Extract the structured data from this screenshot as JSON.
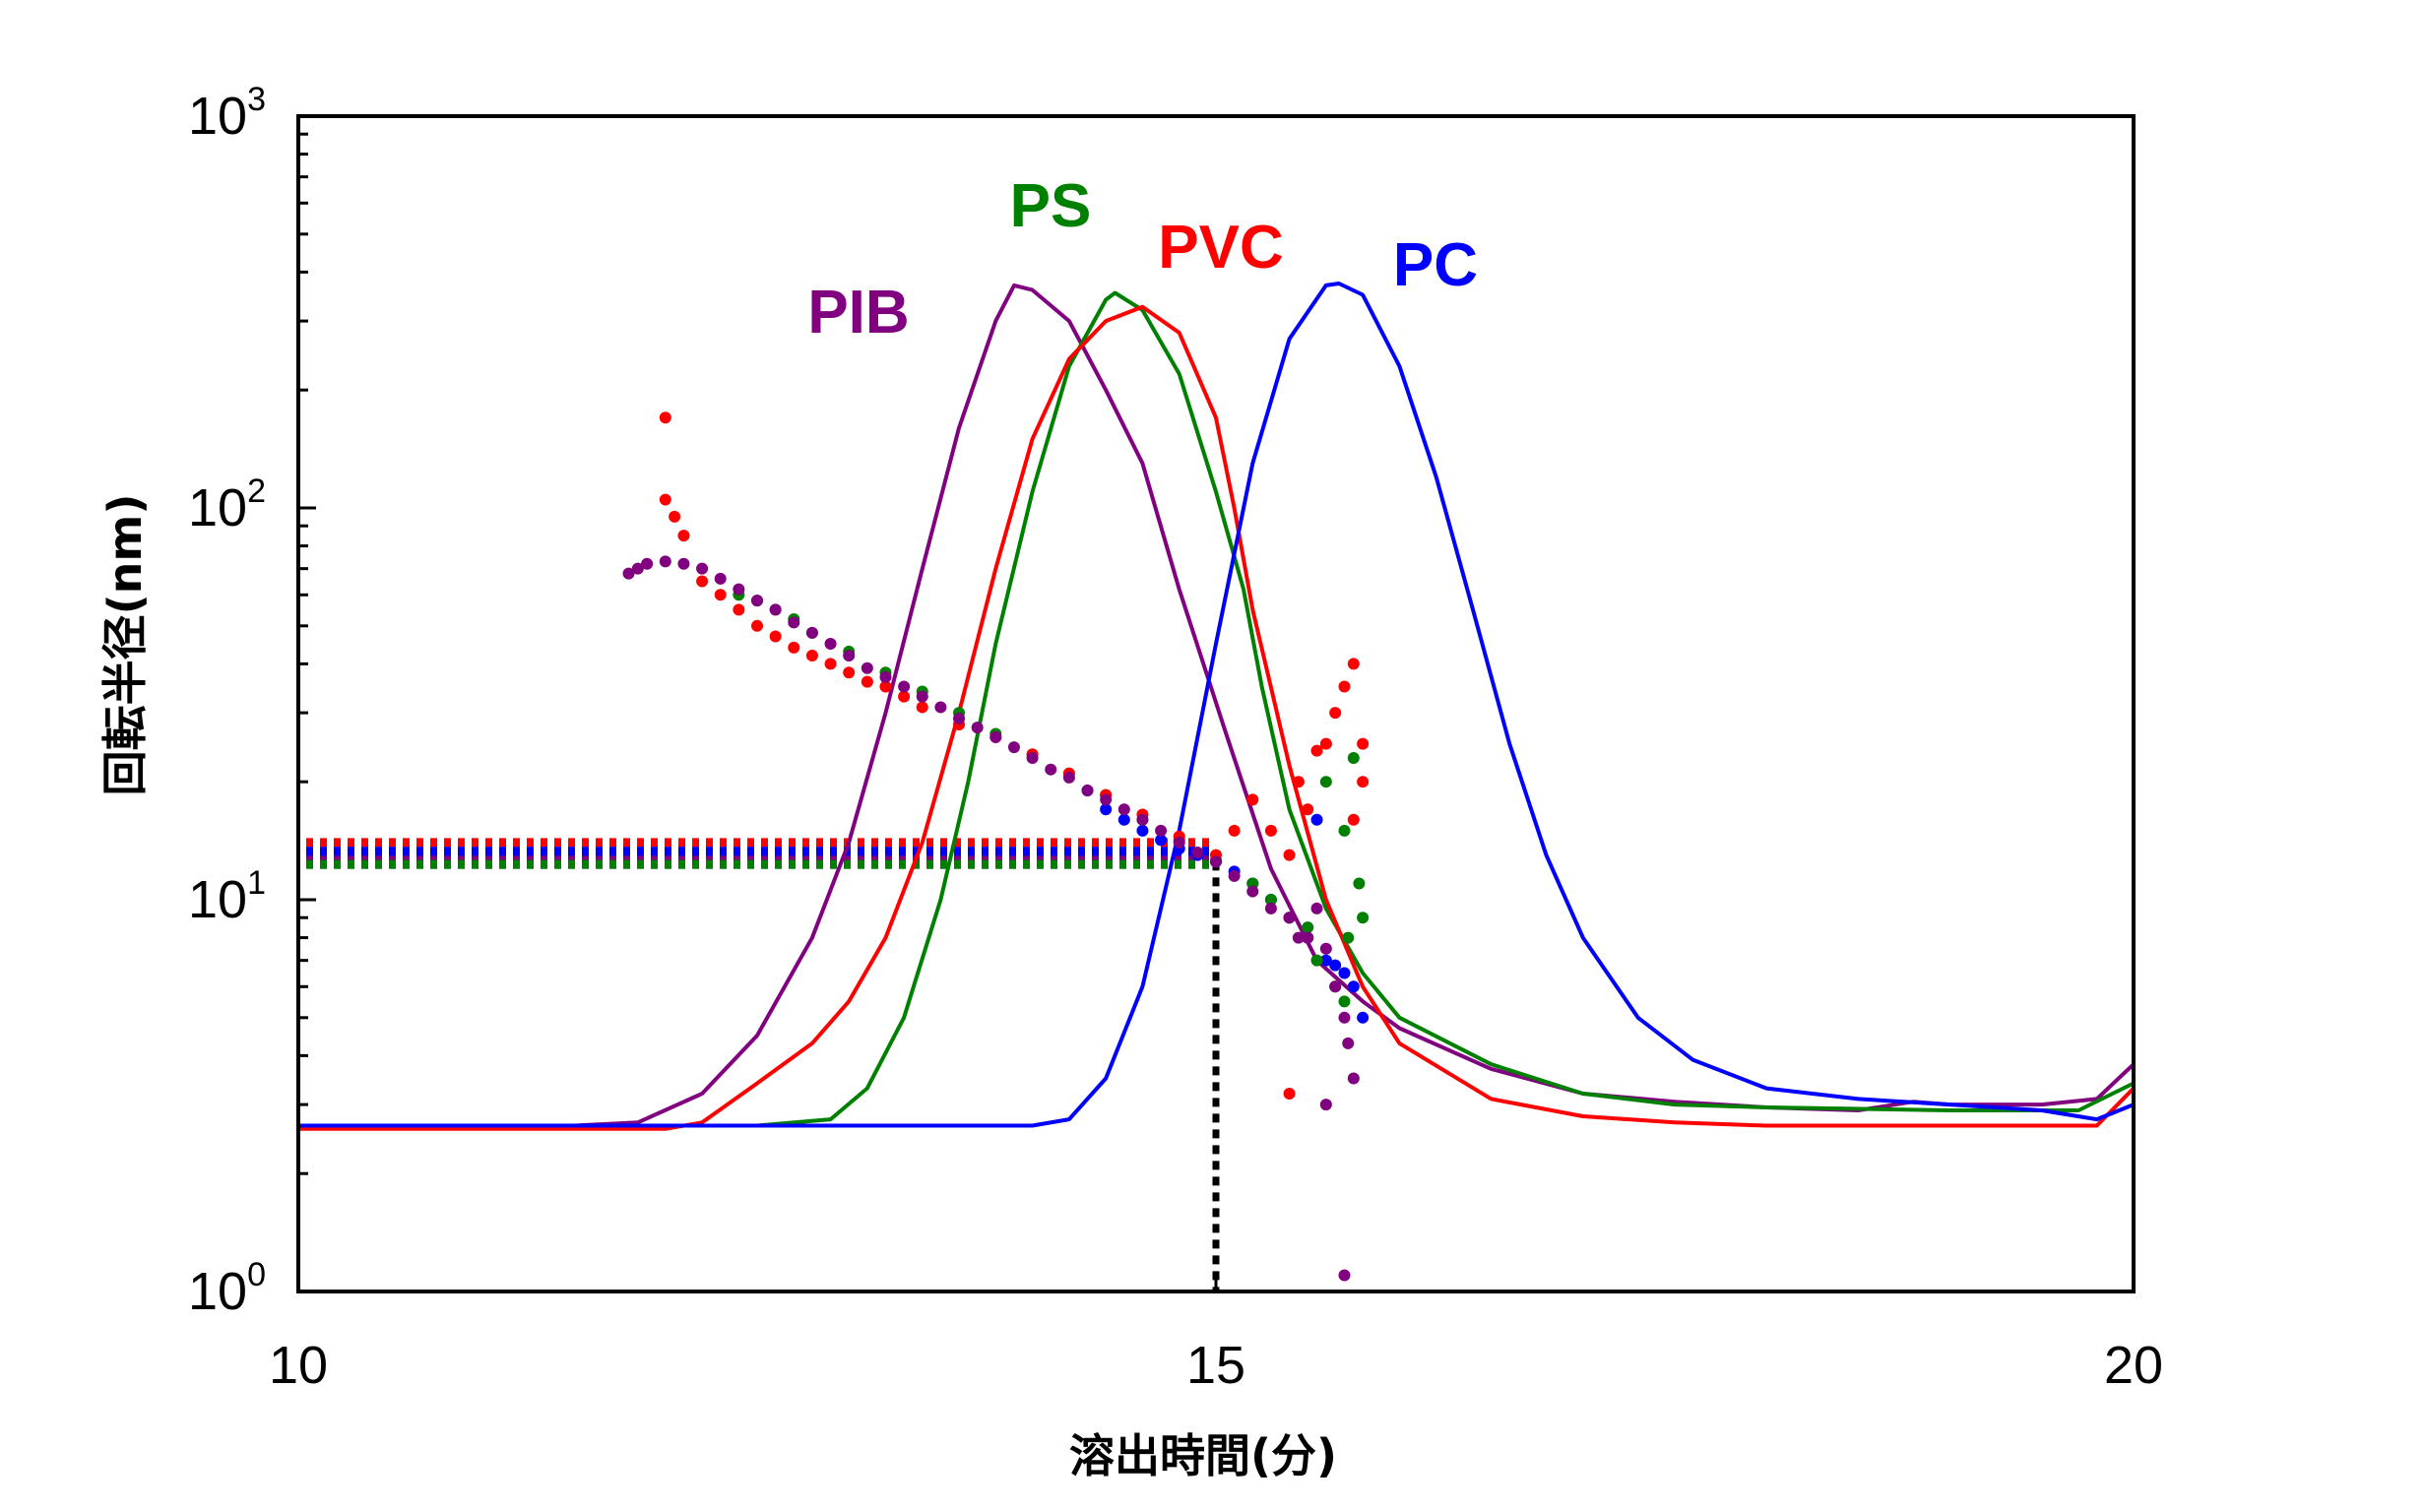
{
  "chart_data": {
    "type": "line",
    "xlabel": "溶出時間(分)",
    "ylabel": "回転半径(nm)",
    "xlim": [
      10,
      20
    ],
    "ylim": [
      1,
      1000
    ],
    "yscale": "log",
    "grid": false,
    "legend": "inline labels near peaks",
    "x_ticks": [
      "10",
      "15",
      "20"
    ],
    "y_ticks": [
      {
        "base": "10",
        "exp": "0"
      },
      {
        "base": "10",
        "exp": "1"
      },
      {
        "base": "10",
        "exp": "2"
      },
      {
        "base": "10",
        "exp": "3"
      }
    ],
    "series": [
      {
        "name": "PIB",
        "color": "#800080",
        "curve": [
          [
            10,
            2.65
          ],
          [
            11.5,
            2.65
          ],
          [
            11.85,
            2.7
          ],
          [
            12.2,
            3.2
          ],
          [
            12.5,
            4.5
          ],
          [
            12.8,
            8
          ],
          [
            13.0,
            14
          ],
          [
            13.2,
            30
          ],
          [
            13.4,
            70
          ],
          [
            13.6,
            160
          ],
          [
            13.8,
            300
          ],
          [
            13.9,
            370
          ],
          [
            14.0,
            360
          ],
          [
            14.2,
            300
          ],
          [
            14.4,
            200
          ],
          [
            14.6,
            130
          ],
          [
            14.8,
            62
          ],
          [
            15.05,
            27
          ],
          [
            15.3,
            12
          ],
          [
            15.55,
            7
          ],
          [
            15.8,
            5.5
          ],
          [
            16.0,
            4.7
          ],
          [
            16.5,
            3.7
          ],
          [
            17.0,
            3.2
          ],
          [
            17.5,
            3.05
          ],
          [
            18.0,
            2.95
          ],
          [
            18.5,
            2.9
          ],
          [
            18.8,
            3.05
          ],
          [
            19.0,
            3.0
          ],
          [
            19.5,
            3.0
          ],
          [
            19.8,
            3.1
          ],
          [
            20.0,
            3.8
          ]
        ],
        "rg_points": [
          [
            11.8,
            68
          ],
          [
            11.85,
            70
          ],
          [
            11.9,
            72
          ],
          [
            12.0,
            73
          ],
          [
            12.1,
            72
          ],
          [
            12.2,
            70
          ],
          [
            12.3,
            66
          ],
          [
            12.4,
            62
          ],
          [
            12.5,
            58
          ],
          [
            12.6,
            55
          ],
          [
            12.7,
            51
          ],
          [
            12.8,
            48
          ],
          [
            12.9,
            45
          ],
          [
            13.0,
            42
          ],
          [
            13.1,
            39
          ],
          [
            13.2,
            37
          ],
          [
            13.3,
            35
          ],
          [
            13.4,
            33
          ],
          [
            13.5,
            31
          ],
          [
            13.6,
            29
          ],
          [
            13.7,
            27.5
          ],
          [
            13.8,
            26
          ],
          [
            13.9,
            24.5
          ],
          [
            14.0,
            23
          ],
          [
            14.1,
            21.5
          ],
          [
            14.2,
            20.5
          ],
          [
            14.3,
            19
          ],
          [
            14.4,
            18
          ],
          [
            14.5,
            17
          ],
          [
            14.6,
            16
          ],
          [
            14.7,
            15
          ],
          [
            14.8,
            14
          ],
          [
            14.9,
            13.2
          ],
          [
            15.0,
            12.5
          ],
          [
            15.1,
            11.5
          ],
          [
            15.2,
            10.5
          ],
          [
            15.3,
            9.5
          ],
          [
            15.4,
            9
          ],
          [
            15.45,
            8
          ],
          [
            15.5,
            8
          ],
          [
            15.55,
            9.5
          ],
          [
            15.6,
            7.5
          ],
          [
            15.65,
            6
          ],
          [
            15.7,
            5
          ],
          [
            15.72,
            4.3
          ],
          [
            15.75,
            3.5
          ],
          [
            15.6,
            3.0
          ],
          [
            15.7,
            1.1
          ]
        ],
        "reference_rg": 12.8
      },
      {
        "name": "PS",
        "color": "#008000",
        "curve": [
          [
            10,
            2.65
          ],
          [
            12.5,
            2.65
          ],
          [
            12.9,
            2.75
          ],
          [
            13.1,
            3.3
          ],
          [
            13.3,
            5
          ],
          [
            13.5,
            10
          ],
          [
            13.65,
            20
          ],
          [
            13.8,
            45
          ],
          [
            14.0,
            110
          ],
          [
            14.2,
            230
          ],
          [
            14.4,
            340
          ],
          [
            14.45,
            354
          ],
          [
            14.6,
            320
          ],
          [
            14.8,
            220
          ],
          [
            15.0,
            110
          ],
          [
            15.15,
            62
          ],
          [
            15.25,
            35
          ],
          [
            15.4,
            17
          ],
          [
            15.6,
            9.5
          ],
          [
            15.8,
            6.5
          ],
          [
            16.0,
            5.0
          ],
          [
            16.5,
            3.8
          ],
          [
            17.0,
            3.2
          ],
          [
            17.5,
            3.0
          ],
          [
            18.0,
            2.95
          ],
          [
            19.0,
            2.9
          ],
          [
            19.7,
            2.9
          ],
          [
            20.0,
            3.4
          ]
        ],
        "rg_points": [
          [
            12.4,
            60
          ],
          [
            12.5,
            58
          ],
          [
            12.6,
            55
          ],
          [
            12.7,
            52
          ],
          [
            12.8,
            48
          ],
          [
            13.0,
            43
          ],
          [
            13.2,
            38
          ],
          [
            13.4,
            34
          ],
          [
            13.6,
            30
          ],
          [
            13.8,
            26.5
          ],
          [
            14.0,
            23.5
          ],
          [
            14.2,
            21
          ],
          [
            14.4,
            18.5
          ],
          [
            14.6,
            16
          ],
          [
            14.8,
            14.2
          ],
          [
            15.0,
            12.6
          ],
          [
            15.2,
            11
          ],
          [
            15.3,
            10
          ],
          [
            15.4,
            9
          ],
          [
            15.5,
            8.5
          ],
          [
            15.55,
            7
          ],
          [
            15.6,
            20
          ],
          [
            15.65,
            6
          ],
          [
            15.7,
            15
          ],
          [
            15.72,
            8
          ],
          [
            15.75,
            23
          ],
          [
            15.78,
            11
          ],
          [
            15.8,
            9
          ],
          [
            15.7,
            5.5
          ]
        ],
        "reference_rg": 12.3
      },
      {
        "name": "PVC",
        "color": "#FF0000",
        "curve": [
          [
            10,
            2.6
          ],
          [
            12.0,
            2.6
          ],
          [
            12.2,
            2.7
          ],
          [
            12.5,
            3.4
          ],
          [
            12.8,
            4.3
          ],
          [
            13.0,
            5.5
          ],
          [
            13.2,
            8
          ],
          [
            13.4,
            14
          ],
          [
            13.6,
            30
          ],
          [
            13.8,
            70
          ],
          [
            14.0,
            150
          ],
          [
            14.2,
            240
          ],
          [
            14.4,
            300
          ],
          [
            14.6,
            326
          ],
          [
            14.8,
            280
          ],
          [
            15.0,
            170
          ],
          [
            15.1,
            100
          ],
          [
            15.2,
            55
          ],
          [
            15.4,
            22
          ],
          [
            15.6,
            10
          ],
          [
            15.8,
            6
          ],
          [
            16.0,
            4.3
          ],
          [
            16.5,
            3.1
          ],
          [
            17.0,
            2.8
          ],
          [
            17.5,
            2.7
          ],
          [
            18.0,
            2.65
          ],
          [
            19.0,
            2.65
          ],
          [
            19.8,
            2.65
          ],
          [
            20.0,
            3.3
          ]
        ],
        "rg_points": [
          [
            12.0,
            170
          ],
          [
            12.0,
            105
          ],
          [
            12.05,
            95
          ],
          [
            12.1,
            85
          ],
          [
            12.2,
            65
          ],
          [
            12.3,
            60
          ],
          [
            12.4,
            55
          ],
          [
            12.5,
            50
          ],
          [
            12.6,
            47
          ],
          [
            12.7,
            44
          ],
          [
            12.8,
            42
          ],
          [
            12.9,
            40
          ],
          [
            13.0,
            38
          ],
          [
            13.1,
            36
          ],
          [
            13.2,
            35
          ],
          [
            13.3,
            33
          ],
          [
            13.4,
            31
          ],
          [
            13.6,
            28
          ],
          [
            13.8,
            26
          ],
          [
            14.0,
            23.5
          ],
          [
            14.2,
            21
          ],
          [
            14.4,
            18.5
          ],
          [
            14.6,
            16.5
          ],
          [
            14.8,
            14.5
          ],
          [
            15.0,
            13
          ],
          [
            15.1,
            15
          ],
          [
            15.2,
            18
          ],
          [
            15.3,
            15
          ],
          [
            15.4,
            13
          ],
          [
            15.45,
            20
          ],
          [
            15.5,
            17
          ],
          [
            15.55,
            24
          ],
          [
            15.6,
            25
          ],
          [
            15.65,
            30
          ],
          [
            15.7,
            35
          ],
          [
            15.75,
            40
          ],
          [
            15.8,
            25
          ],
          [
            15.8,
            20
          ],
          [
            15.75,
            16
          ],
          [
            15.4,
            3.2
          ]
        ],
        "reference_rg": 14.0
      },
      {
        "name": "PC",
        "color": "#0000FF",
        "curve": [
          [
            10,
            2.65
          ],
          [
            14.0,
            2.65
          ],
          [
            14.2,
            2.75
          ],
          [
            14.4,
            3.5
          ],
          [
            14.6,
            6
          ],
          [
            14.8,
            15
          ],
          [
            15.0,
            45
          ],
          [
            15.2,
            130
          ],
          [
            15.4,
            270
          ],
          [
            15.6,
            370
          ],
          [
            15.67,
            374
          ],
          [
            15.8,
            350
          ],
          [
            16.0,
            230
          ],
          [
            16.2,
            120
          ],
          [
            16.4,
            55
          ],
          [
            16.6,
            25
          ],
          [
            16.8,
            13
          ],
          [
            17.0,
            8
          ],
          [
            17.3,
            5
          ],
          [
            17.6,
            3.9
          ],
          [
            18.0,
            3.3
          ],
          [
            18.5,
            3.1
          ],
          [
            19.0,
            3.0
          ],
          [
            19.5,
            2.9
          ],
          [
            19.8,
            2.75
          ],
          [
            20.0,
            3.0
          ]
        ],
        "rg_points": [
          [
            14.3,
            19
          ],
          [
            14.4,
            17
          ],
          [
            14.5,
            16
          ],
          [
            14.6,
            15
          ],
          [
            14.7,
            14.2
          ],
          [
            14.8,
            13.5
          ],
          [
            14.9,
            13
          ],
          [
            15.0,
            12.5
          ],
          [
            15.1,
            11.8
          ],
          [
            15.2,
            11
          ],
          [
            15.3,
            10
          ],
          [
            15.4,
            9
          ],
          [
            15.5,
            8
          ],
          [
            15.55,
            16
          ],
          [
            15.6,
            7
          ],
          [
            15.65,
            6.8
          ],
          [
            15.7,
            6.5
          ],
          [
            15.75,
            6
          ],
          [
            15.8,
            5
          ]
        ],
        "reference_rg": 13.3
      }
    ],
    "annotations": {
      "vertical_reference_x": 15
    }
  }
}
